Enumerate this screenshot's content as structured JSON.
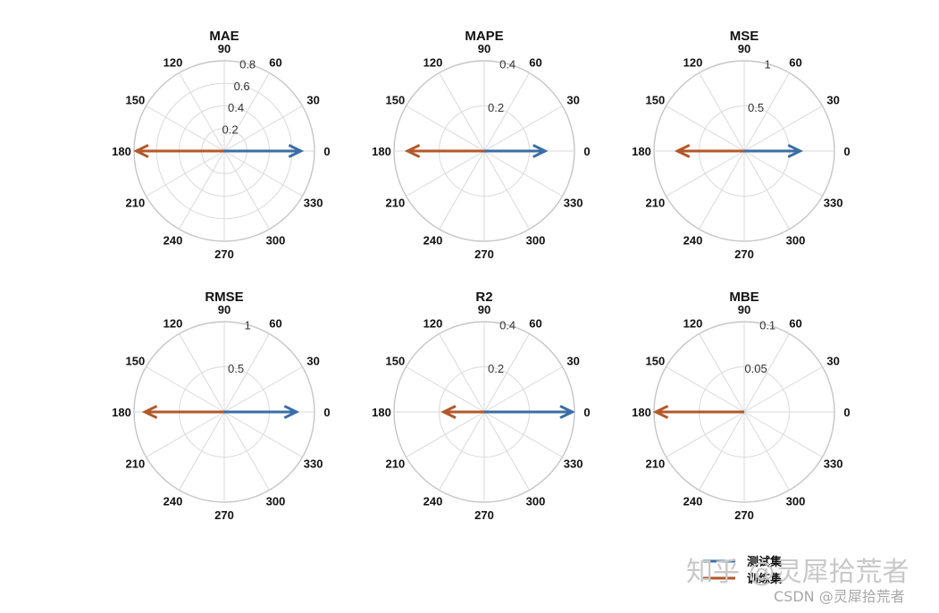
{
  "chart_data": [
    {
      "type": "polar",
      "title": "MAE",
      "angle_labels": [
        "0",
        "30",
        "60",
        "90",
        "120",
        "150",
        "180",
        "210",
        "240",
        "270",
        "300",
        "330"
      ],
      "radial_ticks": [
        "0.2",
        "0.4",
        "0.6",
        "0.8"
      ],
      "rmax": 0.8,
      "series": [
        {
          "name": "测试集",
          "theta": 0,
          "r": 0.68
        },
        {
          "name": "训练集",
          "theta": 180,
          "r": 0.78
        }
      ]
    },
    {
      "type": "polar",
      "title": "MAPE",
      "angle_labels": [
        "0",
        "30",
        "60",
        "90",
        "120",
        "150",
        "180",
        "210",
        "240",
        "270",
        "300",
        "330"
      ],
      "radial_ticks": [
        "0.2",
        "0.4"
      ],
      "rmax": 0.4,
      "series": [
        {
          "name": "测试集",
          "theta": 0,
          "r": 0.27
        },
        {
          "name": "训练集",
          "theta": 180,
          "r": 0.34
        }
      ]
    },
    {
      "type": "polar",
      "title": "MSE",
      "angle_labels": [
        "0",
        "30",
        "60",
        "90",
        "120",
        "150",
        "180",
        "210",
        "240",
        "270",
        "300",
        "330"
      ],
      "radial_ticks": [
        "0.5",
        "1"
      ],
      "rmax": 1,
      "series": [
        {
          "name": "测试集",
          "theta": 0,
          "r": 0.62
        },
        {
          "name": "训练集",
          "theta": 180,
          "r": 0.74
        }
      ]
    },
    {
      "type": "polar",
      "title": "RMSE",
      "angle_labels": [
        "0",
        "30",
        "60",
        "90",
        "120",
        "150",
        "180",
        "210",
        "240",
        "270",
        "300",
        "330"
      ],
      "radial_ticks": [
        "0.5",
        "1"
      ],
      "rmax": 1,
      "series": [
        {
          "name": "测试集",
          "theta": 0,
          "r": 0.8
        },
        {
          "name": "训练集",
          "theta": 180,
          "r": 0.88
        }
      ]
    },
    {
      "type": "polar",
      "title": "R2",
      "angle_labels": [
        "0",
        "30",
        "60",
        "90",
        "120",
        "150",
        "180",
        "210",
        "240",
        "270",
        "300",
        "330"
      ],
      "radial_ticks": [
        "0.2",
        "0.4"
      ],
      "rmax": 0.4,
      "series": [
        {
          "name": "测试集",
          "theta": 0,
          "r": 0.39
        },
        {
          "name": "训练集",
          "theta": 180,
          "r": 0.18
        }
      ]
    },
    {
      "type": "polar",
      "title": "MBE",
      "angle_labels": [
        "0",
        "30",
        "60",
        "90",
        "120",
        "150",
        "180",
        "210",
        "240",
        "270",
        "300",
        "330"
      ],
      "radial_ticks": [
        "0.05",
        "0.1"
      ],
      "rmax": 0.1,
      "series": [
        {
          "name": "测试集",
          "theta": 0,
          "r": 0.0
        },
        {
          "name": "训练集",
          "theta": 180,
          "r": 0.098
        }
      ]
    }
  ],
  "legend": {
    "items": [
      {
        "label": "测试集",
        "color": "#3a6ea5"
      },
      {
        "label": "训练集",
        "color": "#b2582a"
      }
    ]
  },
  "colors": {
    "test": "#3a6ea5",
    "train": "#b2582a",
    "grid": "#d9d9d9"
  },
  "watermark": {
    "main": "知乎 @灵犀拾荒者",
    "credit": "CSDN @灵犀拾荒者"
  }
}
